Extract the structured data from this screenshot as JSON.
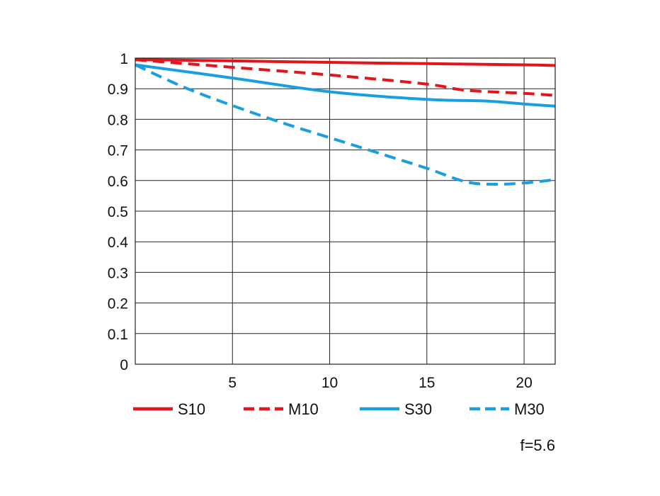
{
  "chart_data": {
    "type": "line",
    "title": "",
    "xlabel": "",
    "ylabel": "",
    "xlim": [
      0,
      21.6
    ],
    "ylim": [
      0,
      1
    ],
    "x_ticks": [
      5,
      10,
      15,
      20
    ],
    "x_tick_labels": [
      "5",
      "10",
      "15",
      "20"
    ],
    "y_ticks": [
      0,
      0.1,
      0.2,
      0.3,
      0.4,
      0.5,
      0.6,
      0.7,
      0.8,
      0.9,
      1
    ],
    "y_tick_labels": [
      "0",
      "0.1",
      "0.2",
      "0.3",
      "0.4",
      "0.5",
      "0.6",
      "0.7",
      "0.8",
      "0.9",
      "1"
    ],
    "grid": true,
    "legend_position": "bottom",
    "annotation": "f=5.6",
    "series": [
      {
        "name": "S10",
        "color": "#e3141b",
        "dash": "solid",
        "x": [
          0,
          5,
          10,
          15,
          20,
          21.6
        ],
        "y": [
          0.995,
          0.991,
          0.986,
          0.982,
          0.978,
          0.976
        ]
      },
      {
        "name": "M10",
        "color": "#e3141b",
        "dash": "dashed",
        "x": [
          0,
          5,
          10,
          15,
          17,
          20,
          21.6
        ],
        "y": [
          0.995,
          0.97,
          0.945,
          0.915,
          0.895,
          0.885,
          0.878
        ]
      },
      {
        "name": "S30",
        "color": "#1a9ee2",
        "dash": "solid",
        "x": [
          0,
          5,
          10,
          15,
          18,
          20,
          21.6
        ],
        "y": [
          0.978,
          0.935,
          0.89,
          0.865,
          0.86,
          0.85,
          0.843
        ]
      },
      {
        "name": "M30",
        "color": "#1a9ee2",
        "dash": "dashed",
        "x": [
          0,
          2.5,
          5,
          7.5,
          10,
          12.5,
          15,
          17,
          18.5,
          20,
          21.6
        ],
        "y": [
          0.978,
          0.905,
          0.845,
          0.79,
          0.74,
          0.69,
          0.64,
          0.596,
          0.588,
          0.592,
          0.603
        ]
      }
    ]
  }
}
